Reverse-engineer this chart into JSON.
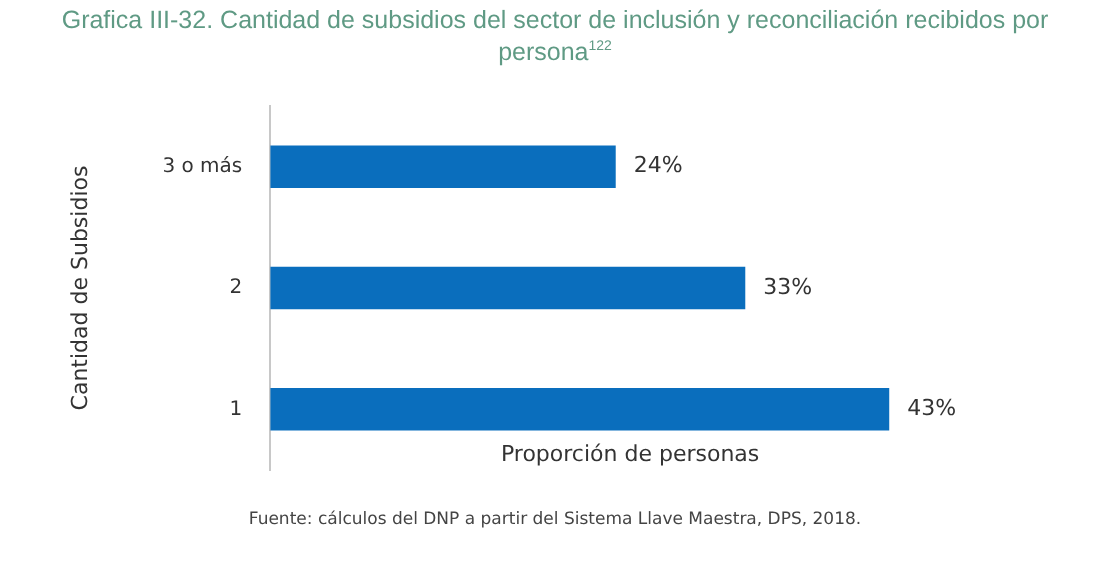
{
  "chart_data": {
    "type": "bar",
    "orientation": "horizontal",
    "title": "Grafica III-32. Cantidad de subsidios del sector de inclusión y reconciliación recibidos por persona$^{122}$",
    "xlabel": "Proporción de personas",
    "ylabel": "Cantidad de Subsidios",
    "categories": [
      "3 o más",
      "2",
      "1"
    ],
    "values": [
      24,
      33,
      43
    ],
    "value_labels": [
      "24%",
      "33%",
      "43%"
    ],
    "color": "#0a6ebd",
    "annotations": [
      "Fuente: cálculos del DNP a partir del Sistema Llave Maestra, DPS, 2018."
    ],
    "legend": false,
    "grid": false
  }
}
